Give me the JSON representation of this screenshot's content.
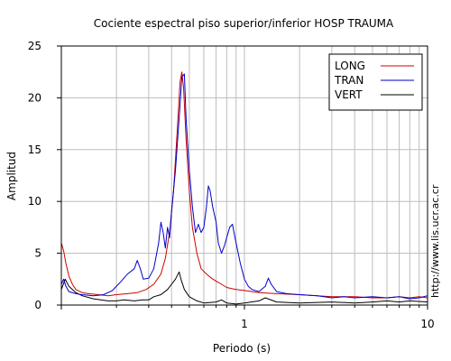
{
  "chart_data": {
    "type": "line",
    "title": "Cociente espectral piso superior/inferior  HOSP TRAUMA",
    "xlabel": "Periodo (s)",
    "ylabel": "Amplitud",
    "side_note": "http://www.lis.ucr.ac.cr",
    "x_scale": "log",
    "xlim": [
      0.1,
      10
    ],
    "ylim": [
      0,
      25
    ],
    "grid": true,
    "legend_position": "top-right",
    "x_ticks": [
      {
        "value": 1,
        "label": "1"
      },
      {
        "value": 10,
        "label": "10"
      }
    ],
    "y_ticks": [
      0,
      5,
      10,
      15,
      20,
      25
    ],
    "series": [
      {
        "name": "LONG",
        "color": "#cc0000",
        "points": [
          [
            0.1,
            6.0
          ],
          [
            0.103,
            5.2
          ],
          [
            0.106,
            4.0
          ],
          [
            0.11,
            2.8
          ],
          [
            0.115,
            2.0
          ],
          [
            0.12,
            1.5
          ],
          [
            0.13,
            1.2
          ],
          [
            0.14,
            1.1
          ],
          [
            0.16,
            1.0
          ],
          [
            0.18,
            0.9
          ],
          [
            0.2,
            1.0
          ],
          [
            0.23,
            1.1
          ],
          [
            0.26,
            1.2
          ],
          [
            0.29,
            1.5
          ],
          [
            0.32,
            2.0
          ],
          [
            0.35,
            3.0
          ],
          [
            0.37,
            4.5
          ],
          [
            0.39,
            7.0
          ],
          [
            0.41,
            11.0
          ],
          [
            0.43,
            17.0
          ],
          [
            0.445,
            21.5
          ],
          [
            0.455,
            22.5
          ],
          [
            0.465,
            21.0
          ],
          [
            0.48,
            16.0
          ],
          [
            0.5,
            11.0
          ],
          [
            0.52,
            7.5
          ],
          [
            0.55,
            5.0
          ],
          [
            0.58,
            3.5
          ],
          [
            0.62,
            3.0
          ],
          [
            0.66,
            2.6
          ],
          [
            0.7,
            2.3
          ],
          [
            0.75,
            2.0
          ],
          [
            0.8,
            1.7
          ],
          [
            0.9,
            1.5
          ],
          [
            1.0,
            1.4
          ],
          [
            1.2,
            1.2
          ],
          [
            1.5,
            1.1
          ],
          [
            2.0,
            1.0
          ],
          [
            2.5,
            0.9
          ],
          [
            3.0,
            0.8
          ],
          [
            4.0,
            0.8
          ],
          [
            5.0,
            0.7
          ],
          [
            6.0,
            0.7
          ],
          [
            7.0,
            0.8
          ],
          [
            8.0,
            0.7
          ],
          [
            9.0,
            0.8
          ],
          [
            10.0,
            0.7
          ]
        ]
      },
      {
        "name": "TRAN",
        "color": "#0000cc",
        "points": [
          [
            0.1,
            2.0
          ],
          [
            0.103,
            2.5
          ],
          [
            0.106,
            1.8
          ],
          [
            0.11,
            1.3
          ],
          [
            0.12,
            1.1
          ],
          [
            0.13,
            1.0
          ],
          [
            0.15,
            0.9
          ],
          [
            0.17,
            1.0
          ],
          [
            0.19,
            1.4
          ],
          [
            0.21,
            2.2
          ],
          [
            0.23,
            3.0
          ],
          [
            0.25,
            3.5
          ],
          [
            0.26,
            4.3
          ],
          [
            0.27,
            3.5
          ],
          [
            0.28,
            2.5
          ],
          [
            0.3,
            2.6
          ],
          [
            0.32,
            3.5
          ],
          [
            0.34,
            6.0
          ],
          [
            0.35,
            8.0
          ],
          [
            0.36,
            7.0
          ],
          [
            0.37,
            5.5
          ],
          [
            0.38,
            7.5
          ],
          [
            0.39,
            6.5
          ],
          [
            0.4,
            9.0
          ],
          [
            0.42,
            13.0
          ],
          [
            0.44,
            18.0
          ],
          [
            0.455,
            22.0
          ],
          [
            0.47,
            22.3
          ],
          [
            0.48,
            18.0
          ],
          [
            0.5,
            13.0
          ],
          [
            0.52,
            9.5
          ],
          [
            0.54,
            7.0
          ],
          [
            0.56,
            7.8
          ],
          [
            0.58,
            7.0
          ],
          [
            0.6,
            7.5
          ],
          [
            0.62,
            9.5
          ],
          [
            0.635,
            11.5
          ],
          [
            0.65,
            11.0
          ],
          [
            0.67,
            9.5
          ],
          [
            0.7,
            8.0
          ],
          [
            0.72,
            6.0
          ],
          [
            0.75,
            5.0
          ],
          [
            0.78,
            5.8
          ],
          [
            0.8,
            6.5
          ],
          [
            0.83,
            7.5
          ],
          [
            0.86,
            7.8
          ],
          [
            0.9,
            6.0
          ],
          [
            0.95,
            4.0
          ],
          [
            1.0,
            2.5
          ],
          [
            1.05,
            1.8
          ],
          [
            1.1,
            1.5
          ],
          [
            1.2,
            1.3
          ],
          [
            1.3,
            1.8
          ],
          [
            1.35,
            2.6
          ],
          [
            1.4,
            2.0
          ],
          [
            1.5,
            1.3
          ],
          [
            1.7,
            1.1
          ],
          [
            2.0,
            1.0
          ],
          [
            2.5,
            0.9
          ],
          [
            3.0,
            0.7
          ],
          [
            3.5,
            0.8
          ],
          [
            4.0,
            0.7
          ],
          [
            5.0,
            0.8
          ],
          [
            6.0,
            0.7
          ],
          [
            7.0,
            0.8
          ],
          [
            8.0,
            0.6
          ],
          [
            9.0,
            0.7
          ],
          [
            10.0,
            0.9
          ]
        ]
      },
      {
        "name": "VERT",
        "color": "#000000",
        "points": [
          [
            0.1,
            1.5
          ],
          [
            0.105,
            2.5
          ],
          [
            0.11,
            1.8
          ],
          [
            0.12,
            1.2
          ],
          [
            0.13,
            0.9
          ],
          [
            0.15,
            0.6
          ],
          [
            0.18,
            0.4
          ],
          [
            0.2,
            0.4
          ],
          [
            0.22,
            0.5
          ],
          [
            0.25,
            0.4
          ],
          [
            0.28,
            0.5
          ],
          [
            0.3,
            0.5
          ],
          [
            0.32,
            0.8
          ],
          [
            0.35,
            1.0
          ],
          [
            0.38,
            1.5
          ],
          [
            0.4,
            2.0
          ],
          [
            0.42,
            2.5
          ],
          [
            0.44,
            3.2
          ],
          [
            0.45,
            2.5
          ],
          [
            0.47,
            1.5
          ],
          [
            0.5,
            0.8
          ],
          [
            0.55,
            0.4
          ],
          [
            0.6,
            0.2
          ],
          [
            0.7,
            0.3
          ],
          [
            0.75,
            0.5
          ],
          [
            0.8,
            0.2
          ],
          [
            0.9,
            0.1
          ],
          [
            1.0,
            0.2
          ],
          [
            1.2,
            0.4
          ],
          [
            1.3,
            0.7
          ],
          [
            1.5,
            0.3
          ],
          [
            2.0,
            0.2
          ],
          [
            3.0,
            0.3
          ],
          [
            4.0,
            0.2
          ],
          [
            5.0,
            0.3
          ],
          [
            6.0,
            0.4
          ],
          [
            7.0,
            0.3
          ],
          [
            8.0,
            0.4
          ],
          [
            10.0,
            0.3
          ]
        ]
      }
    ]
  }
}
